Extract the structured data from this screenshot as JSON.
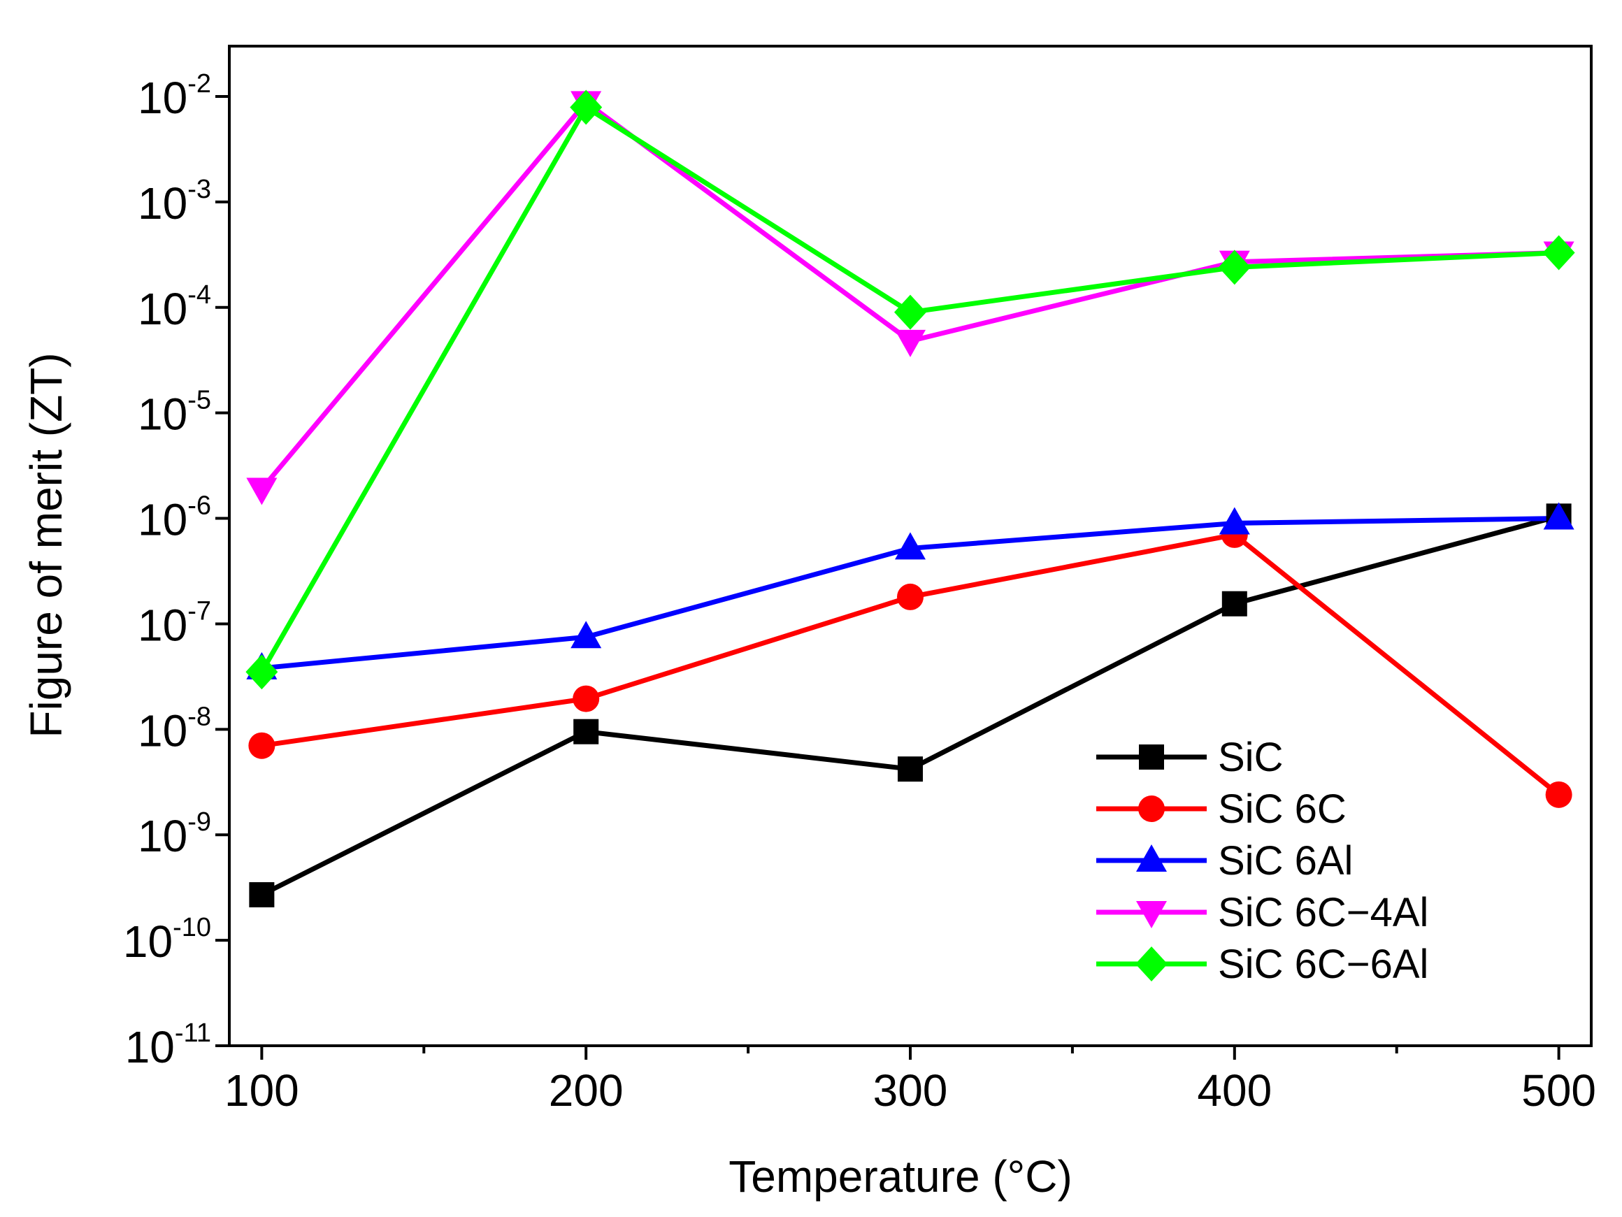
{
  "chart_data": {
    "type": "line",
    "title": "",
    "xlabel": "Temperature (°C)",
    "ylabel": "Figure of merit (ZT)",
    "yscale": "log",
    "xlim": [
      90,
      510
    ],
    "ylim": [
      1e-11,
      0.03
    ],
    "xticks": [
      {
        "value": 100,
        "label": "100"
      },
      {
        "value": 200,
        "label": "200"
      },
      {
        "value": 300,
        "label": "300"
      },
      {
        "value": 400,
        "label": "400"
      },
      {
        "value": 500,
        "label": "500"
      }
    ],
    "xminor": [
      150,
      250,
      350,
      450
    ],
    "yticks": [
      {
        "value": -2,
        "base": "10",
        "exp": "-2"
      },
      {
        "value": -3,
        "base": "10",
        "exp": "-3"
      },
      {
        "value": -4,
        "base": "10",
        "exp": "-4"
      },
      {
        "value": -5,
        "base": "10",
        "exp": "-5"
      },
      {
        "value": -6,
        "base": "10",
        "exp": "-6"
      },
      {
        "value": -7,
        "base": "10",
        "exp": "-7"
      },
      {
        "value": -8,
        "base": "10",
        "exp": "-8"
      },
      {
        "value": -9,
        "base": "10",
        "exp": "-9"
      },
      {
        "value": -10,
        "base": "10",
        "exp": "-10"
      },
      {
        "value": -11,
        "base": "10",
        "exp": "-11"
      }
    ],
    "x": [
      100,
      200,
      300,
      400,
      500
    ],
    "legend_position": "bottom-right",
    "series": [
      {
        "name": "SiC",
        "color": "#000000",
        "marker": "square",
        "values": [
          2.7e-10,
          9.5e-09,
          4.2e-09,
          1.55e-07,
          1.05e-06
        ]
      },
      {
        "name": "SiC 6C",
        "color": "#ff0000",
        "marker": "circle",
        "values": [
          7e-09,
          1.95e-08,
          1.8e-07,
          7e-07,
          2.4e-09
        ]
      },
      {
        "name": "SiC 6Al",
        "color": "#0000ff",
        "marker": "triangle-up",
        "values": [
          3.8e-08,
          7.5e-08,
          5.2e-07,
          9e-07,
          1e-06
        ]
      },
      {
        "name": "SiC 6C−4Al",
        "color": "#ff00ff",
        "marker": "triangle-down",
        "values": [
          1.9e-06,
          0.0088,
          4.8e-05,
          0.00027,
          0.00033
        ]
      },
      {
        "name": "SiC 6C−6Al",
        "color": "#00ff00",
        "marker": "diamond",
        "values": [
          3.5e-08,
          0.0079,
          9e-05,
          0.00024,
          0.00033
        ]
      }
    ]
  }
}
